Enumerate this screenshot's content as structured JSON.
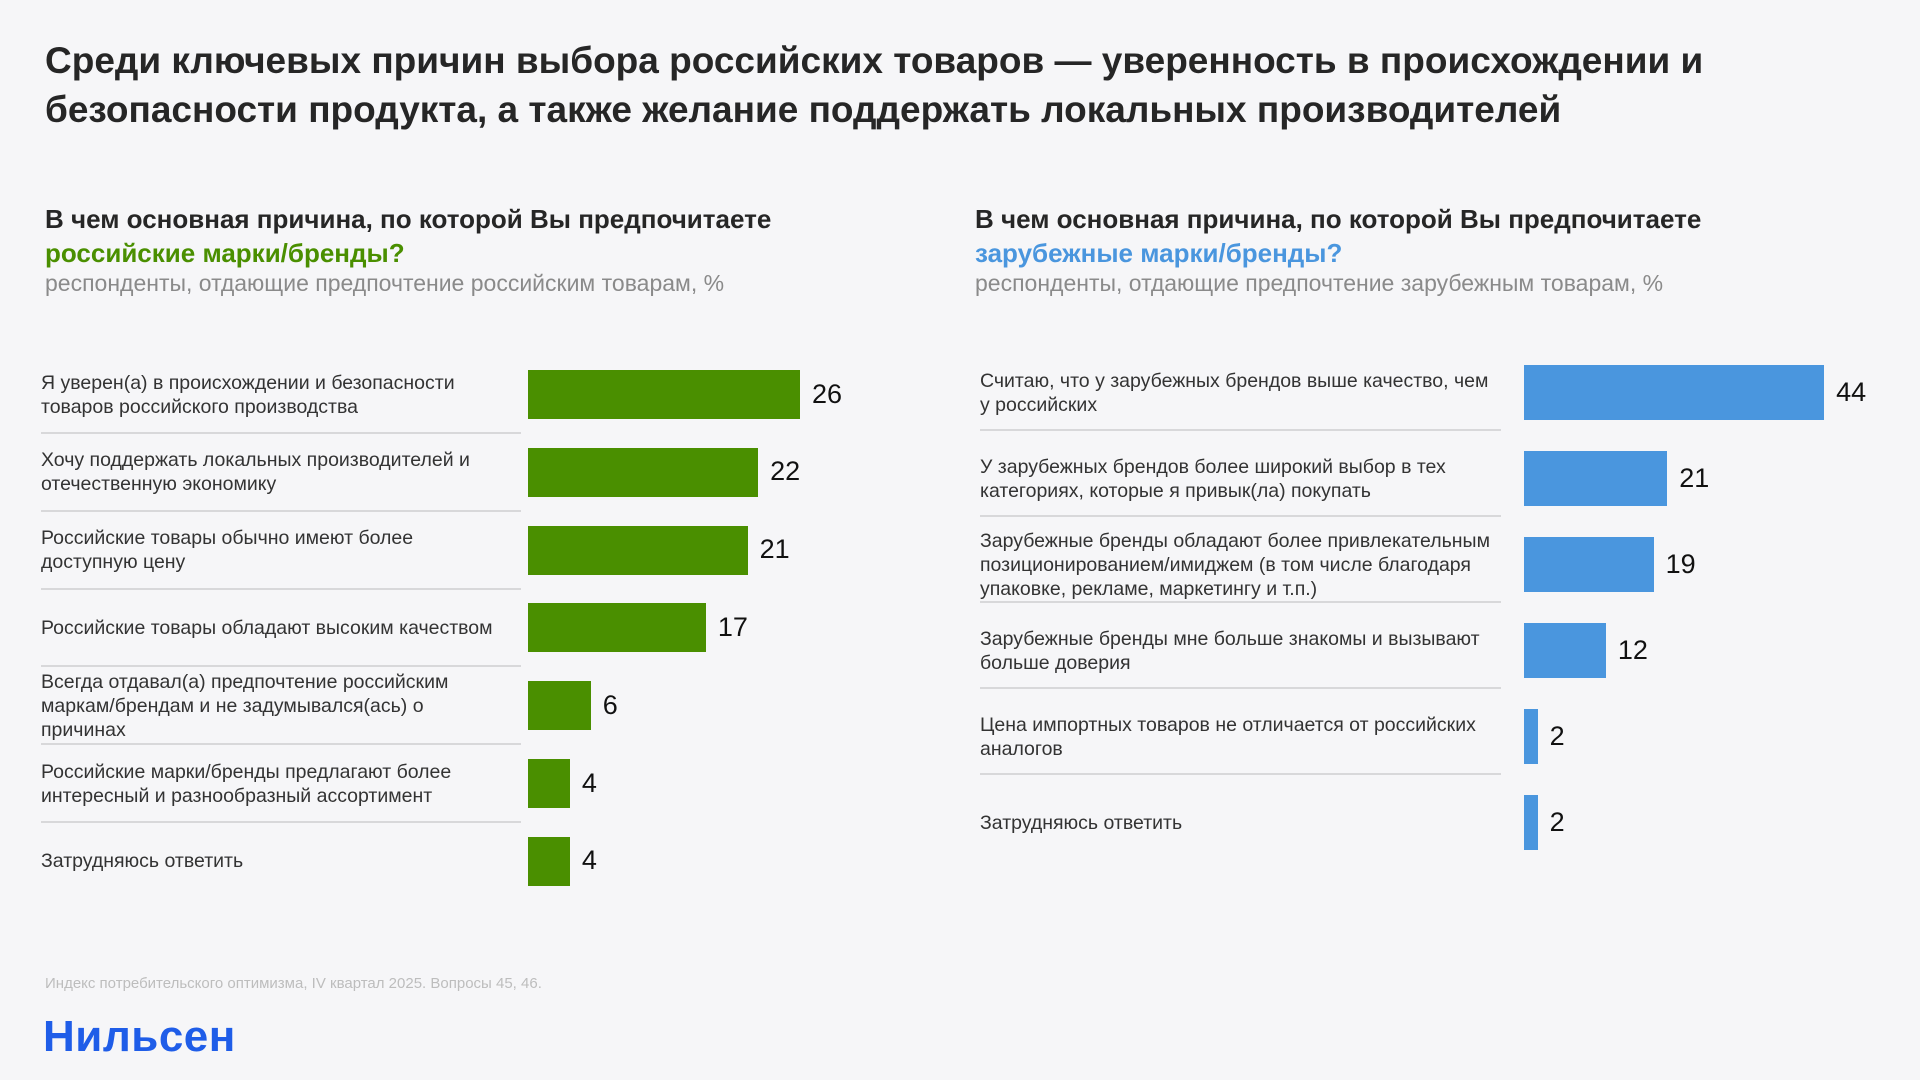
{
  "title": "Среди ключевых причин выбора российских товаров — уверенность в происхождении и безопасности продукта, а также желание поддержать локальных производителей",
  "chart_data": [
    {
      "type": "bar",
      "orientation": "horizontal",
      "title_prefix": "В чем основная причина, по которой Вы предпочитаете ",
      "title_highlight": "российские марки/бренды?",
      "subtitle": "респонденты, отдающие предпочтение российским товарам, %",
      "color": "#4a8f00",
      "categories": [
        "Я уверен(а) в происхождении и безопасности товаров российского производства",
        "Хочу поддержать локальных производителей и отечественную экономику",
        "Российские товары обычно имеют более доступную цену",
        "Российские товары обладают высоким качеством",
        "Всегда отдавал(а) предпочтение российским маркам/брендам и не задумывался(ась) о причинах",
        "Российские марки/бренды предлагают более интересный и разнообразный ассортимент",
        "Затрудняюсь ответить"
      ],
      "values": [
        26,
        22,
        21,
        17,
        6,
        4,
        4
      ],
      "value_labels": [
        "26",
        "22",
        "21",
        "17",
        "6",
        "4",
        "4"
      ]
    },
    {
      "type": "bar",
      "orientation": "horizontal",
      "title_prefix": "В чем основная причина, по которой Вы предпочитаете ",
      "title_highlight": "зарубежные марки/бренды?",
      "subtitle": "респонденты, отдающие предпочтение зарубежным товарам, %",
      "color": "#4a96de",
      "categories": [
        "Считаю, что у зарубежных брендов выше качество, чем у российских",
        "У зарубежных брендов более широкий выбор в тех категориях, которые я привык(ла) покупать",
        "Зарубежные бренды обладают более привлекательным позиционированием/имиджем (в том числе благодаря упаковке, рекламе, маркетингу и т.п.)",
        "Зарубежные бренды мне больше знакомы и вызывают больше доверия",
        "Цена импортных товаров не отличается от российских аналогов",
        "Затрудняюсь ответить"
      ],
      "values": [
        44,
        21,
        19,
        12,
        2,
        2
      ],
      "value_labels": [
        "44",
        "21",
        "19",
        "12",
        "2",
        "2"
      ]
    }
  ],
  "footer": {
    "source": "Индекс потребительского оптимизма, IV квартал 2025. Вопросы 45, 46.",
    "logo": "Нильсен"
  }
}
